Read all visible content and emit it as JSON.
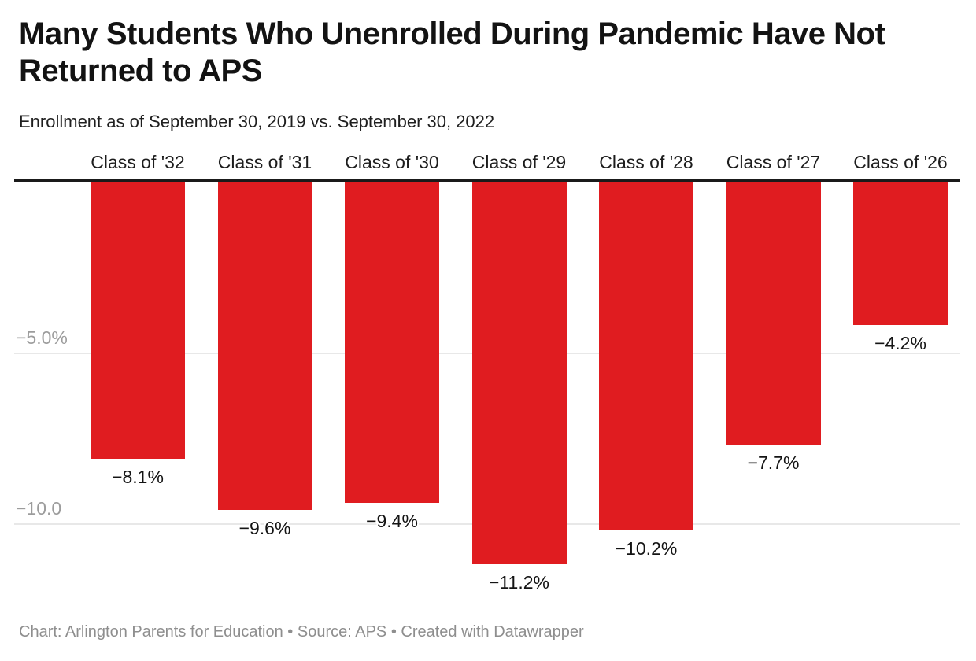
{
  "header": {
    "title_line1": "Many Students Who Unenrolled During Pandemic Have Not",
    "title_line2": "Returned to APS",
    "subtitle": "Enrollment as of September 30, 2019 vs. September 30, 2022"
  },
  "chart_data": {
    "type": "bar",
    "orientation": "vertical-columns-negative",
    "title": "Many Students Who Unenrolled During Pandemic Have Not Returned to APS",
    "subtitle": "Enrollment as of September 30, 2019 vs. September 30, 2022",
    "categories": [
      "Class of '32",
      "Class of '31",
      "Class of '30",
      "Class of '29",
      "Class of '28",
      "Class of '27",
      "Class of '26"
    ],
    "values": [
      -8.1,
      -9.6,
      -9.4,
      -11.2,
      -10.2,
      -7.7,
      -4.2
    ],
    "value_labels": [
      "−8.1%",
      "−9.6%",
      "−9.4%",
      "−11.2%",
      "−10.2%",
      "−7.7%",
      "−4.2%"
    ],
    "y_ticks": [
      {
        "value": -5,
        "label": "−5.0%"
      },
      {
        "value": -10,
        "label": "−10.0"
      }
    ],
    "ylim": [
      -12.5,
      0
    ],
    "xlabel": "",
    "ylabel": "",
    "grid": true,
    "legend": "none",
    "bar_color": "#e01c20",
    "axis_line_color": "#1a1a1a",
    "gridline_color": "#e8e8e8",
    "tick_label_color": "#9c9c9c"
  },
  "footer": {
    "text": "Chart: Arlington Parents for Education • Source: APS • Created with Datawrapper"
  }
}
